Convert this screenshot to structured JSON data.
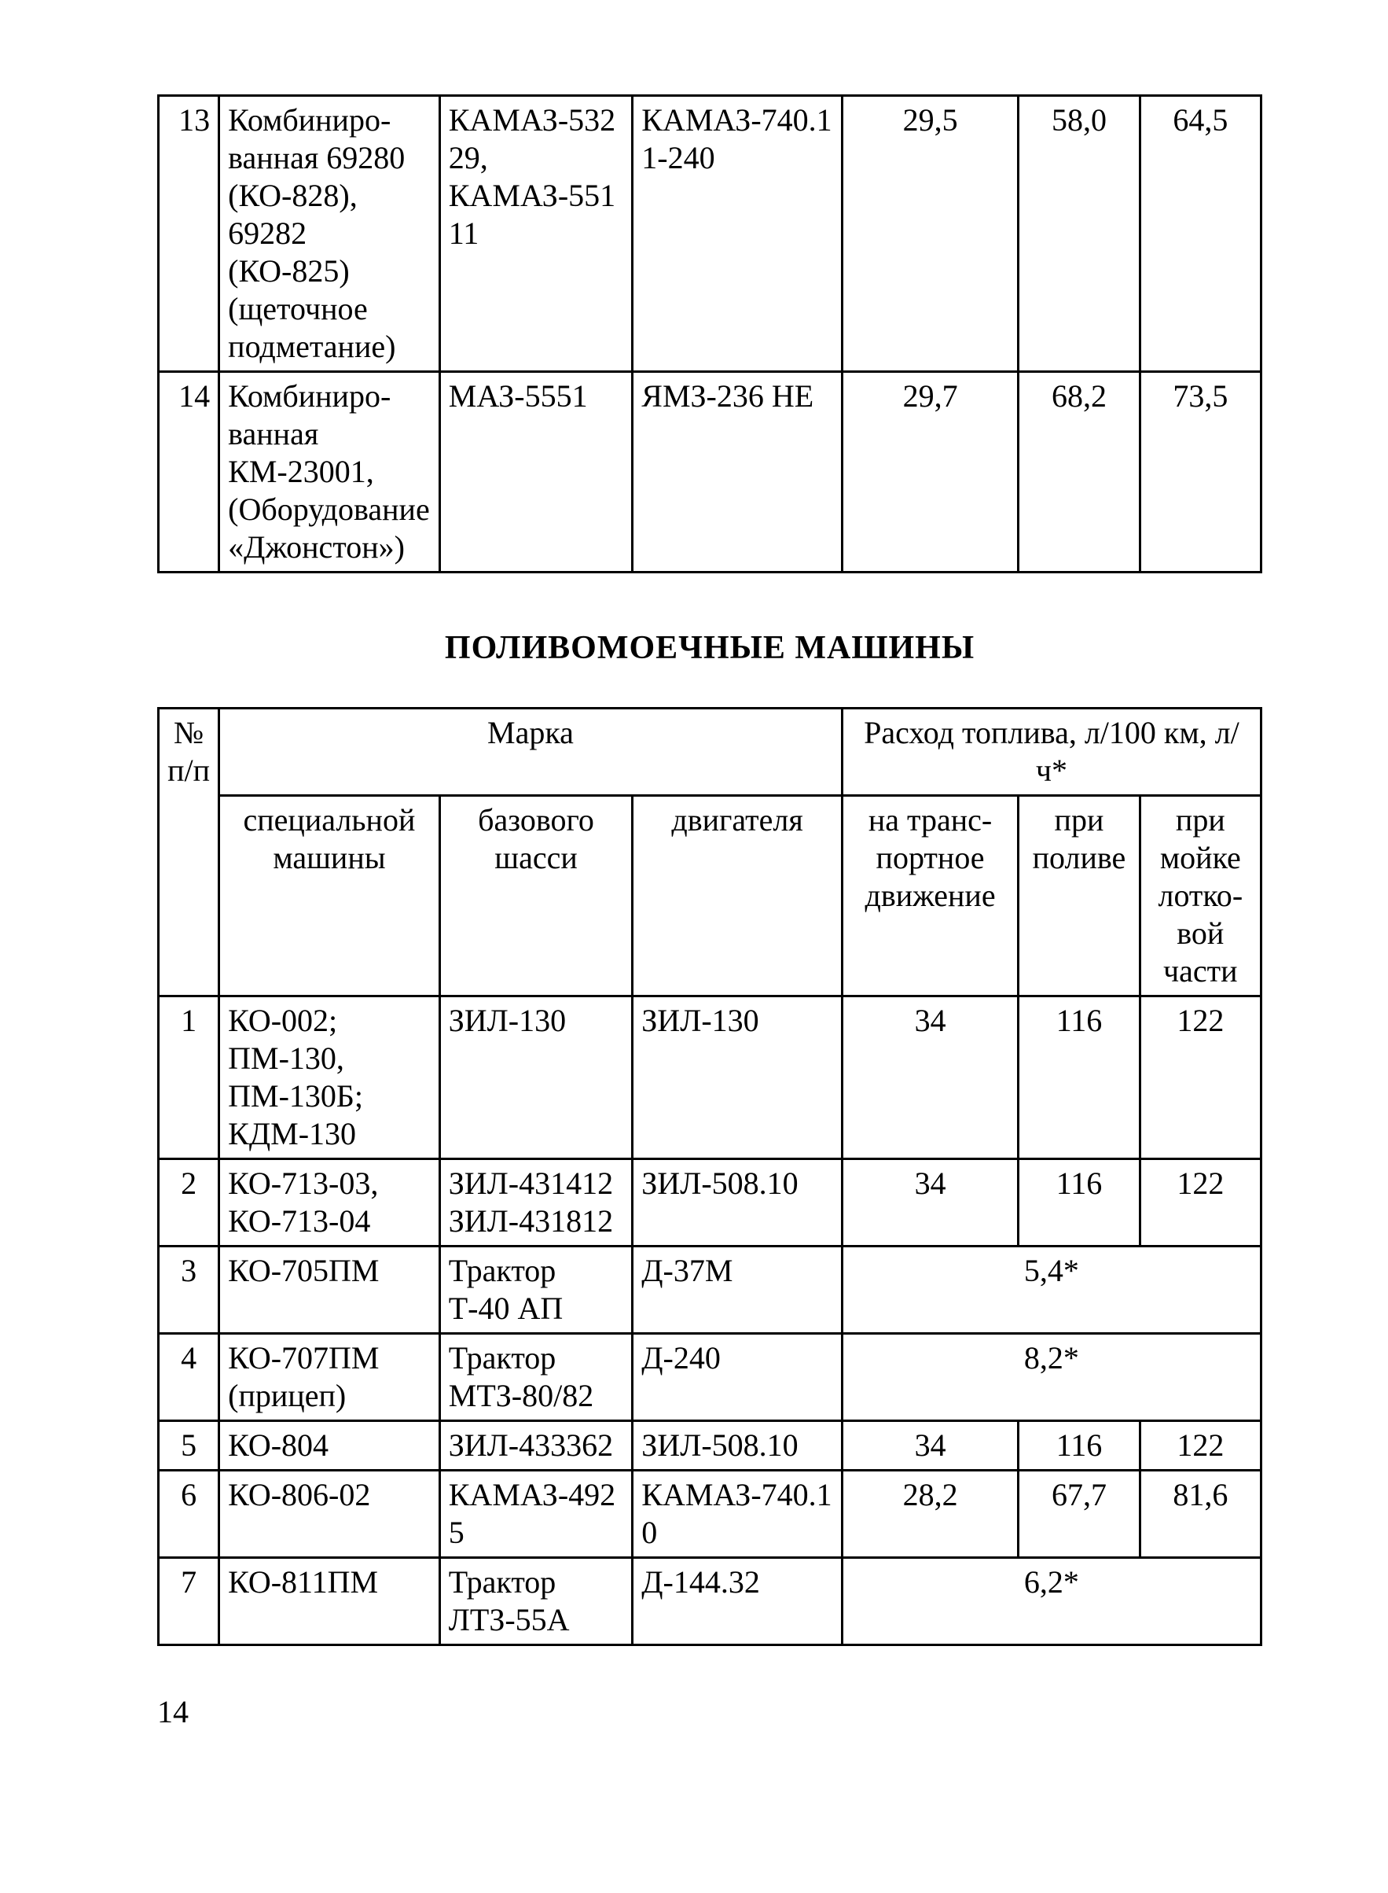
{
  "borderColor": "#000000",
  "textColor": "#000000",
  "backgroundColor": "#ffffff",
  "fontFamily": "Times New Roman",
  "baseFontSizePt": 14,
  "tableBorderWidthPx": 3,
  "pageNumber": "14",
  "table1": {
    "columnsWidthPct": [
      5.5,
      20,
      17.5,
      19,
      16,
      11,
      11
    ],
    "rows": [
      {
        "num": "13",
        "c2": "Комбиниро­ванная 69280 (КО-828), 69282 (КО-825) (щеточное подметание)",
        "c3": "КАМАЗ-53229, КАМАЗ-55111",
        "c4": "КАМАЗ-740.11-240",
        "c5": "29,5",
        "c6": "58,0",
        "c7": "64,5"
      },
      {
        "num": "14",
        "c2": "Комбиниро­ванная КМ-23001, (Оборудова­ние «Джонс­тон»)",
        "c3": "МАЗ-5551",
        "c4": "ЯМЗ-236 НЕ",
        "c5": "29,7",
        "c6": "68,2",
        "c7": "73,5"
      }
    ]
  },
  "sectionTitle": "ПОЛИВОМОЕЧНЫЕ МАШИНЫ",
  "table2": {
    "columnsWidthPct": [
      5.5,
      20,
      17.5,
      19,
      16,
      11,
      11
    ],
    "header": {
      "hNum": "№ п/п",
      "hMark": "Марка",
      "hFuel": "Расход топлива, л/100 км, л/ч*",
      "hSpec": "специальной машины",
      "hChassis": "базового шасси",
      "hEngine": "двигателя",
      "hTransport": "на транс­портное движение",
      "hPoliv": "при поливе",
      "hWash": "при мойке лотко­вой части"
    },
    "rows": [
      {
        "num": "1",
        "spec": "КО-002; ПМ-130, ПМ-130Б; КДМ-130",
        "chassis": "ЗИЛ-130",
        "engine": "ЗИЛ-130",
        "v1": "34",
        "v2": "116",
        "v3": "122",
        "merged": false
      },
      {
        "num": "2",
        "spec": "КО-713-03, КО-713-04",
        "chassis": "ЗИЛ-431412 ЗИЛ-431812",
        "engine": "ЗИЛ-508.10",
        "v1": "34",
        "v2": "116",
        "v3": "122",
        "merged": false
      },
      {
        "num": "3",
        "spec": "КО-705ПМ",
        "chassis": "Трактор Т-40 АП",
        "engine": "Д-37М",
        "vmerged": "5,4*",
        "merged": true
      },
      {
        "num": "4",
        "spec": "КО-707ПМ (прицеп)",
        "chassis": "Трактор МТЗ-80/82",
        "engine": "Д-240",
        "vmerged": "8,2*",
        "merged": true
      },
      {
        "num": "5",
        "spec": "КО-804",
        "chassis": "ЗИЛ-433362",
        "engine": "ЗИЛ-508.10",
        "v1": "34",
        "v2": "116",
        "v3": "122",
        "merged": false
      },
      {
        "num": "6",
        "spec": "КО-806-02",
        "chassis": "КАМАЗ-4925",
        "engine": "КАМАЗ-740.10",
        "v1": "28,2",
        "v2": "67,7",
        "v3": "81,6",
        "merged": false
      },
      {
        "num": "7",
        "spec": "КО-811ПМ",
        "chassis": "Трактор ЛТЗ-55А",
        "engine": "Д-144.32",
        "vmerged": "6,2*",
        "merged": true
      }
    ]
  }
}
